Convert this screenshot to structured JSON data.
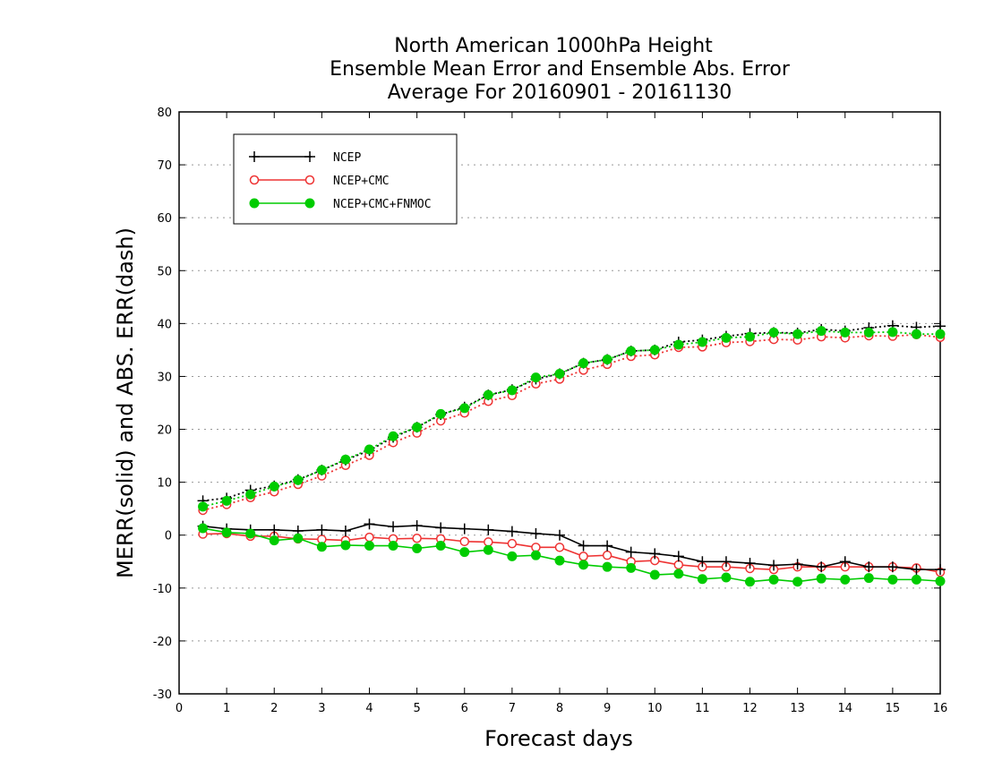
{
  "chart_data": {
    "type": "line",
    "title": [
      "North American 1000hPa Height",
      "Ensemble Mean Error and Ensemble Abs. Error",
      "Average For 20160901 - 20161130"
    ],
    "xlabel": "Forecast days",
    "ylabel": "MERR(solid) and ABS. ERR(dash)",
    "xlim": [
      0,
      16
    ],
    "ylim": [
      -30,
      80
    ],
    "xticks": [
      0,
      1,
      2,
      3,
      4,
      5,
      6,
      7,
      8,
      9,
      10,
      11,
      12,
      13,
      14,
      15,
      16
    ],
    "yticks": [
      -30,
      -20,
      -10,
      0,
      10,
      20,
      30,
      40,
      50,
      60,
      70,
      80
    ],
    "grid": "horizontal dotted",
    "legend_position": "top-left",
    "x": [
      0.5,
      1,
      1.5,
      2,
      2.5,
      3,
      3.5,
      4,
      4.5,
      5,
      5.5,
      6,
      6.5,
      7,
      7.5,
      8,
      8.5,
      9,
      9.5,
      10,
      10.5,
      11,
      11.5,
      12,
      12.5,
      13,
      13.5,
      14,
      14.5,
      15,
      15.5,
      16
    ],
    "series": [
      {
        "name": "NCEP",
        "color": "#000000",
        "marker": "plus",
        "merr": [
          1.7,
          1.2,
          1.0,
          1.0,
          0.8,
          1.0,
          0.8,
          2.1,
          1.6,
          1.8,
          1.4,
          1.2,
          1.0,
          0.7,
          0.3,
          0.0,
          -2.0,
          -2.0,
          -3.2,
          -3.5,
          -4.0,
          -5.0,
          -5.0,
          -5.3,
          -5.7,
          -5.5,
          -6.0,
          -5.0,
          -6.0,
          -6.0,
          -6.5,
          -6.5
        ],
        "abs_err": [
          6.5,
          7.0,
          8.5,
          9.3,
          10.5,
          12.3,
          14.2,
          16.0,
          18.5,
          20.4,
          22.8,
          24.2,
          26.5,
          27.5,
          29.5,
          30.5,
          32.5,
          33.2,
          34.8,
          35.0,
          36.5,
          36.9,
          37.6,
          38.1,
          38.3,
          38.2,
          38.9,
          38.6,
          39.2,
          39.6,
          39.3,
          39.5
        ]
      },
      {
        "name": "NCEP+CMC",
        "color": "#ee3333",
        "marker": "open-circle",
        "merr": [
          0.2,
          0.3,
          -0.2,
          -0.2,
          -0.7,
          -0.8,
          -1.0,
          -0.4,
          -0.7,
          -0.6,
          -0.7,
          -1.2,
          -1.3,
          -1.6,
          -2.3,
          -2.3,
          -4.0,
          -3.8,
          -5.0,
          -4.8,
          -5.6,
          -6.0,
          -6.0,
          -6.3,
          -6.5,
          -6.0,
          -6.0,
          -6.0,
          -6.0,
          -6.0,
          -6.2,
          -7.0
        ],
        "abs_err": [
          4.7,
          5.8,
          7.1,
          8.2,
          9.6,
          11.2,
          13.2,
          15.1,
          17.5,
          19.3,
          21.6,
          23.1,
          25.3,
          26.4,
          28.6,
          29.5,
          31.2,
          32.3,
          33.8,
          34.1,
          35.5,
          35.6,
          36.4,
          36.6,
          37.0,
          36.9,
          37.5,
          37.3,
          37.7,
          37.6,
          37.9,
          37.4
        ]
      },
      {
        "name": "NCEP+CMC+FNMOC",
        "color": "#00cc00",
        "marker": "filled-circle",
        "merr": [
          1.3,
          0.5,
          0.3,
          -1.0,
          -0.6,
          -2.2,
          -1.9,
          -2.0,
          -2.0,
          -2.5,
          -2.0,
          -3.2,
          -2.8,
          -4.0,
          -3.8,
          -4.8,
          -5.6,
          -6.0,
          -6.2,
          -7.5,
          -7.3,
          -8.3,
          -8.0,
          -8.8,
          -8.4,
          -8.8,
          -8.2,
          -8.4,
          -8.1,
          -8.4,
          -8.4,
          -8.7
        ],
        "abs_err": [
          5.4,
          6.5,
          7.7,
          9.2,
          10.4,
          12.3,
          14.3,
          16.2,
          18.7,
          20.4,
          22.9,
          24.0,
          26.5,
          27.4,
          29.8,
          30.5,
          32.5,
          33.2,
          34.8,
          35.0,
          36.0,
          36.5,
          37.3,
          37.5,
          38.3,
          38.0,
          38.6,
          38.3,
          38.3,
          38.4,
          38.0,
          38.0
        ]
      }
    ]
  }
}
